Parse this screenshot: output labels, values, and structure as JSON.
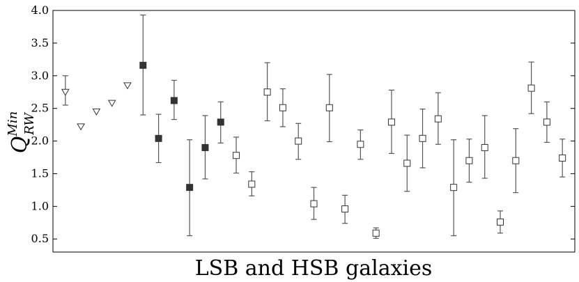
{
  "chart_data": {
    "type": "scatter",
    "xlabel": "LSB and HSB galaxies",
    "ylabel": {
      "main": "Q",
      "sup": "Min",
      "sub": "RW"
    },
    "ylim": [
      0.3,
      4.0
    ],
    "yticks": [
      "0.5",
      "1.0",
      "1.5",
      "2.0",
      "2.5",
      "3.0",
      "3.5",
      "4.0"
    ],
    "grid": false,
    "points": [
      {
        "i": 1,
        "marker": "triangle-open",
        "y": 2.75,
        "lo": 2.55,
        "hi": 3.0
      },
      {
        "i": 2,
        "marker": "triangle-open",
        "y": 2.22
      },
      {
        "i": 3,
        "marker": "triangle-open",
        "y": 2.45
      },
      {
        "i": 4,
        "marker": "triangle-open",
        "y": 2.58
      },
      {
        "i": 5,
        "marker": "triangle-open",
        "y": 2.85
      },
      {
        "i": 6,
        "marker": "square-filled",
        "y": 3.16,
        "lo": 2.4,
        "hi": 3.93
      },
      {
        "i": 7,
        "marker": "square-filled",
        "y": 2.04,
        "lo": 1.67,
        "hi": 2.41
      },
      {
        "i": 8,
        "marker": "square-filled",
        "y": 2.62,
        "lo": 2.33,
        "hi": 2.93
      },
      {
        "i": 9,
        "marker": "square-filled",
        "y": 1.29,
        "lo": 0.55,
        "hi": 2.02
      },
      {
        "i": 10,
        "marker": "square-filled",
        "y": 1.9,
        "lo": 1.42,
        "hi": 2.39
      },
      {
        "i": 11,
        "marker": "square-filled",
        "y": 2.29,
        "lo": 1.97,
        "hi": 2.6
      },
      {
        "i": 12,
        "marker": "square-open",
        "y": 1.78,
        "lo": 1.51,
        "hi": 2.06
      },
      {
        "i": 13,
        "marker": "square-open",
        "y": 1.34,
        "lo": 1.16,
        "hi": 1.53
      },
      {
        "i": 14,
        "marker": "square-open",
        "y": 2.75,
        "lo": 2.31,
        "hi": 3.2
      },
      {
        "i": 15,
        "marker": "square-open",
        "y": 2.51,
        "lo": 2.22,
        "hi": 2.8
      },
      {
        "i": 16,
        "marker": "square-open",
        "y": 2.0,
        "lo": 1.72,
        "hi": 2.27
      },
      {
        "i": 17,
        "marker": "square-open",
        "y": 1.04,
        "lo": 0.8,
        "hi": 1.29
      },
      {
        "i": 18,
        "marker": "square-open",
        "y": 2.51,
        "lo": 1.99,
        "hi": 3.02
      },
      {
        "i": 19,
        "marker": "square-open",
        "y": 0.96,
        "lo": 0.74,
        "hi": 1.17
      },
      {
        "i": 20,
        "marker": "square-open",
        "y": 1.95,
        "lo": 1.72,
        "hi": 2.17
      },
      {
        "i": 21,
        "marker": "square-open",
        "y": 0.59,
        "lo": 0.51,
        "hi": 0.67
      },
      {
        "i": 22,
        "marker": "square-open",
        "y": 2.29,
        "lo": 1.81,
        "hi": 2.78
      },
      {
        "i": 23,
        "marker": "square-open",
        "y": 1.66,
        "lo": 1.23,
        "hi": 2.09
      },
      {
        "i": 24,
        "marker": "square-open",
        "y": 2.04,
        "lo": 1.59,
        "hi": 2.49
      },
      {
        "i": 25,
        "marker": "square-open",
        "y": 2.34,
        "lo": 1.95,
        "hi": 2.74
      },
      {
        "i": 26,
        "marker": "square-open",
        "y": 1.29,
        "lo": 0.55,
        "hi": 2.02
      },
      {
        "i": 27,
        "marker": "square-open",
        "y": 1.7,
        "lo": 1.37,
        "hi": 2.03
      },
      {
        "i": 28,
        "marker": "square-open",
        "y": 1.9,
        "lo": 1.43,
        "hi": 2.39
      },
      {
        "i": 29,
        "marker": "square-open",
        "y": 0.76,
        "lo": 0.59,
        "hi": 0.93
      },
      {
        "i": 30,
        "marker": "square-open",
        "y": 1.7,
        "lo": 1.21,
        "hi": 2.19
      },
      {
        "i": 31,
        "marker": "square-open",
        "y": 2.81,
        "lo": 2.42,
        "hi": 3.21
      },
      {
        "i": 32,
        "marker": "square-open",
        "y": 2.29,
        "lo": 1.98,
        "hi": 2.6
      },
      {
        "i": 33,
        "marker": "square-open",
        "y": 1.74,
        "lo": 1.45,
        "hi": 2.03
      }
    ],
    "colors": {
      "filled": "#333333",
      "open": "#ffffff",
      "stroke": "#333333",
      "errorbar": "#555555"
    }
  }
}
